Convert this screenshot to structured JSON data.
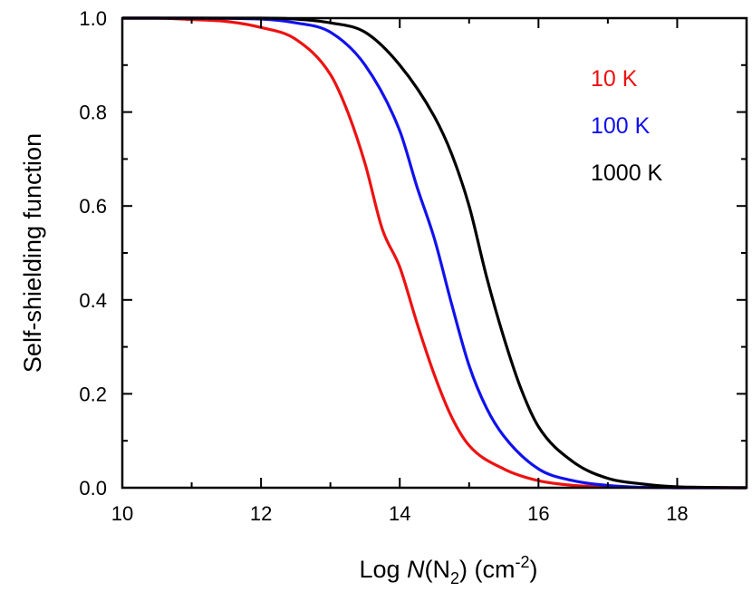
{
  "chart_data": {
    "type": "line",
    "xlabel": {
      "prefix": "Log ",
      "italic": "N",
      "open": "(N",
      "sub": "2",
      "close": ") (cm",
      "sup": "-2",
      "end": ")"
    },
    "ylabel": "Self-shielding function",
    "xlim": [
      10,
      19
    ],
    "ylim": [
      0.0,
      1.0
    ],
    "x_ticks": [
      "10",
      "12",
      "14",
      "16",
      "18"
    ],
    "y_ticks": [
      "0.0",
      "0.2",
      "0.4",
      "0.6",
      "0.8",
      "1.0"
    ],
    "grid": false,
    "legend_position": "top-right",
    "series": [
      {
        "name": "10 K",
        "color": "#ee1111",
        "x": [
          10,
          10.5,
          11,
          11.5,
          12,
          12.5,
          13,
          13.25,
          13.5,
          13.75,
          14,
          14.25,
          14.5,
          14.75,
          15,
          15.5,
          16,
          16.5,
          17,
          18,
          19
        ],
        "y": [
          1.0,
          1.0,
          0.997,
          0.993,
          0.98,
          0.955,
          0.88,
          0.8,
          0.69,
          0.55,
          0.47,
          0.35,
          0.24,
          0.15,
          0.09,
          0.04,
          0.015,
          0.005,
          0.002,
          0.0,
          0.0
        ]
      },
      {
        "name": "100 K",
        "color": "#1111ee",
        "x": [
          10,
          11,
          12,
          12.5,
          13,
          13.5,
          14,
          14.25,
          14.5,
          14.75,
          15,
          15.25,
          15.5,
          16,
          16.5,
          17,
          18,
          19
        ],
        "y": [
          1.0,
          1.0,
          0.998,
          0.99,
          0.97,
          0.9,
          0.76,
          0.64,
          0.53,
          0.39,
          0.26,
          0.17,
          0.11,
          0.04,
          0.015,
          0.005,
          0.0,
          0.0
        ]
      },
      {
        "name": "1000 K",
        "color": "#000000",
        "x": [
          10,
          11,
          12,
          12.5,
          13,
          13.5,
          14,
          14.5,
          14.75,
          15,
          15.25,
          15.5,
          15.75,
          16,
          16.5,
          17,
          17.5,
          18,
          19
        ],
        "y": [
          1.0,
          1.0,
          1.0,
          0.998,
          0.99,
          0.97,
          0.9,
          0.79,
          0.71,
          0.6,
          0.45,
          0.32,
          0.21,
          0.13,
          0.055,
          0.02,
          0.008,
          0.002,
          0.0
        ]
      }
    ]
  }
}
